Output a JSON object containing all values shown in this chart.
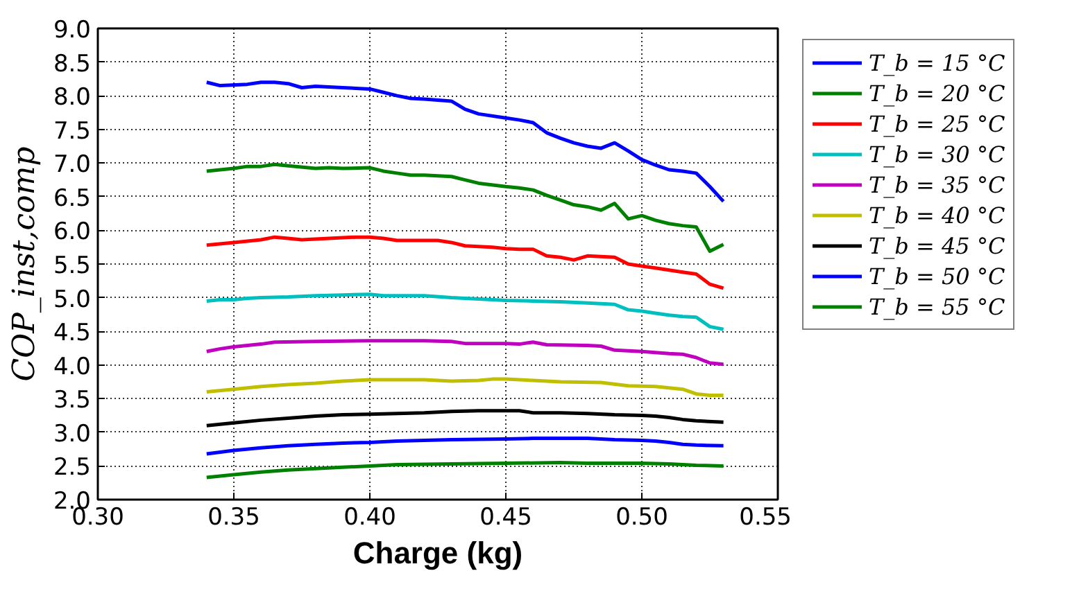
{
  "chart_data": {
    "type": "line",
    "xlabel": "Charge (kg)",
    "ylabel": "COP_inst,comp",
    "xlim": [
      0.3,
      0.55
    ],
    "ylim": [
      2.0,
      9.0
    ],
    "xticks": [
      {
        "value": 0.3,
        "label": "0.30"
      },
      {
        "value": 0.35,
        "label": "0.35"
      },
      {
        "value": 0.4,
        "label": "0.40"
      },
      {
        "value": 0.45,
        "label": "0.45"
      },
      {
        "value": 0.5,
        "label": "0.50"
      },
      {
        "value": 0.55,
        "label": "0.55"
      }
    ],
    "yticks": [
      {
        "value": 2.0,
        "label": "2.0"
      },
      {
        "value": 2.5,
        "label": "2.5"
      },
      {
        "value": 3.0,
        "label": "3.0"
      },
      {
        "value": 3.5,
        "label": "3.5"
      },
      {
        "value": 4.0,
        "label": "4.0"
      },
      {
        "value": 4.5,
        "label": "4.5"
      },
      {
        "value": 5.0,
        "label": "5.0"
      },
      {
        "value": 5.5,
        "label": "5.5"
      },
      {
        "value": 6.0,
        "label": "6.0"
      },
      {
        "value": 6.5,
        "label": "6.5"
      },
      {
        "value": 7.0,
        "label": "7.0"
      },
      {
        "value": 7.5,
        "label": "7.5"
      },
      {
        "value": 8.0,
        "label": "8.0"
      },
      {
        "value": 8.5,
        "label": "8.5"
      },
      {
        "value": 9.0,
        "label": "9.0"
      }
    ],
    "grid": true,
    "legend": "right",
    "line_style": "solid",
    "marker": "none",
    "series": [
      {
        "name": "T_b = 15 °C",
        "color": "#0000ff",
        "x": [
          0.34,
          0.345,
          0.355,
          0.36,
          0.365,
          0.37,
          0.375,
          0.38,
          0.39,
          0.4,
          0.405,
          0.41,
          0.415,
          0.42,
          0.43,
          0.435,
          0.44,
          0.45,
          0.455,
          0.46,
          0.465,
          0.47,
          0.475,
          0.48,
          0.485,
          0.49,
          0.495,
          0.5,
          0.505,
          0.51,
          0.515,
          0.52,
          0.525,
          0.53
        ],
        "values": [
          8.2,
          8.15,
          8.17,
          8.2,
          8.2,
          8.18,
          8.12,
          8.14,
          8.12,
          8.1,
          8.05,
          8.0,
          7.96,
          7.95,
          7.92,
          7.8,
          7.73,
          7.67,
          7.64,
          7.6,
          7.45,
          7.37,
          7.3,
          7.25,
          7.22,
          7.3,
          7.18,
          7.05,
          6.97,
          6.9,
          6.88,
          6.85,
          6.65,
          6.43
        ]
      },
      {
        "name": "T_b = 20 °C",
        "color": "#008000",
        "x": [
          0.34,
          0.35,
          0.355,
          0.36,
          0.365,
          0.37,
          0.38,
          0.385,
          0.39,
          0.4,
          0.405,
          0.41,
          0.415,
          0.42,
          0.43,
          0.435,
          0.44,
          0.45,
          0.455,
          0.46,
          0.465,
          0.47,
          0.475,
          0.48,
          0.485,
          0.49,
          0.495,
          0.5,
          0.505,
          0.51,
          0.515,
          0.52,
          0.525,
          0.53
        ],
        "values": [
          6.88,
          6.92,
          6.95,
          6.95,
          6.98,
          6.96,
          6.92,
          6.93,
          6.92,
          6.93,
          6.88,
          6.85,
          6.82,
          6.82,
          6.8,
          6.75,
          6.7,
          6.65,
          6.63,
          6.6,
          6.52,
          6.45,
          6.38,
          6.35,
          6.3,
          6.4,
          6.17,
          6.22,
          6.15,
          6.1,
          6.07,
          6.05,
          5.69,
          5.79
        ]
      },
      {
        "name": "T_b = 25 °C",
        "color": "#ff0000",
        "x": [
          0.34,
          0.35,
          0.36,
          0.365,
          0.37,
          0.375,
          0.38,
          0.39,
          0.395,
          0.4,
          0.405,
          0.41,
          0.42,
          0.425,
          0.43,
          0.435,
          0.44,
          0.445,
          0.45,
          0.455,
          0.46,
          0.465,
          0.47,
          0.475,
          0.48,
          0.485,
          0.49,
          0.495,
          0.5,
          0.505,
          0.51,
          0.515,
          0.52,
          0.525,
          0.53
        ],
        "values": [
          5.78,
          5.82,
          5.86,
          5.9,
          5.88,
          5.86,
          5.87,
          5.89,
          5.9,
          5.9,
          5.88,
          5.85,
          5.85,
          5.85,
          5.82,
          5.77,
          5.76,
          5.75,
          5.73,
          5.72,
          5.72,
          5.62,
          5.6,
          5.56,
          5.62,
          5.61,
          5.6,
          5.5,
          5.47,
          5.44,
          5.41,
          5.38,
          5.35,
          5.2,
          5.14
        ]
      },
      {
        "name": "T_b = 30 °C",
        "color": "#00bfbf",
        "x": [
          0.34,
          0.345,
          0.35,
          0.355,
          0.36,
          0.37,
          0.38,
          0.39,
          0.4,
          0.405,
          0.41,
          0.42,
          0.43,
          0.44,
          0.45,
          0.46,
          0.47,
          0.48,
          0.49,
          0.495,
          0.5,
          0.505,
          0.51,
          0.515,
          0.52,
          0.525,
          0.53
        ],
        "values": [
          4.95,
          4.97,
          4.97,
          4.99,
          5.0,
          5.01,
          5.03,
          5.04,
          5.05,
          5.03,
          5.03,
          5.03,
          5.0,
          4.98,
          4.96,
          4.95,
          4.94,
          4.92,
          4.9,
          4.82,
          4.8,
          4.77,
          4.74,
          4.72,
          4.71,
          4.57,
          4.53
        ]
      },
      {
        "name": "T_b = 35 °C",
        "color": "#bf00bf",
        "x": [
          0.34,
          0.345,
          0.35,
          0.36,
          0.365,
          0.38,
          0.4,
          0.42,
          0.43,
          0.435,
          0.45,
          0.455,
          0.46,
          0.465,
          0.48,
          0.485,
          0.49,
          0.5,
          0.51,
          0.515,
          0.52,
          0.525,
          0.53
        ],
        "values": [
          4.2,
          4.24,
          4.27,
          4.31,
          4.34,
          4.35,
          4.36,
          4.36,
          4.35,
          4.32,
          4.32,
          4.31,
          4.34,
          4.3,
          4.29,
          4.28,
          4.22,
          4.2,
          4.17,
          4.16,
          4.11,
          4.03,
          4.01
        ]
      },
      {
        "name": "T_b = 40 °C",
        "color": "#bfbf00",
        "x": [
          0.34,
          0.35,
          0.36,
          0.37,
          0.38,
          0.39,
          0.4,
          0.42,
          0.43,
          0.44,
          0.445,
          0.45,
          0.46,
          0.47,
          0.485,
          0.495,
          0.505,
          0.51,
          0.515,
          0.52,
          0.525,
          0.53
        ],
        "values": [
          3.6,
          3.64,
          3.68,
          3.71,
          3.73,
          3.76,
          3.78,
          3.78,
          3.76,
          3.77,
          3.79,
          3.79,
          3.77,
          3.75,
          3.74,
          3.69,
          3.68,
          3.66,
          3.64,
          3.57,
          3.55,
          3.55
        ]
      },
      {
        "name": "T_b = 45 °C",
        "color": "#000000",
        "x": [
          0.34,
          0.35,
          0.36,
          0.37,
          0.38,
          0.39,
          0.4,
          0.41,
          0.42,
          0.43,
          0.44,
          0.455,
          0.46,
          0.47,
          0.48,
          0.49,
          0.5,
          0.505,
          0.51,
          0.515,
          0.52,
          0.53
        ],
        "values": [
          3.1,
          3.14,
          3.18,
          3.21,
          3.24,
          3.26,
          3.27,
          3.28,
          3.29,
          3.31,
          3.32,
          3.32,
          3.29,
          3.29,
          3.28,
          3.26,
          3.25,
          3.24,
          3.22,
          3.19,
          3.17,
          3.15
        ]
      },
      {
        "name": "T_b = 50 °C",
        "color": "#0000ff",
        "x": [
          0.34,
          0.35,
          0.36,
          0.37,
          0.38,
          0.39,
          0.4,
          0.41,
          0.42,
          0.43,
          0.45,
          0.46,
          0.47,
          0.48,
          0.49,
          0.5,
          0.505,
          0.51,
          0.515,
          0.52,
          0.53
        ],
        "values": [
          2.68,
          2.73,
          2.77,
          2.8,
          2.82,
          2.84,
          2.85,
          2.87,
          2.88,
          2.89,
          2.9,
          2.91,
          2.91,
          2.91,
          2.89,
          2.88,
          2.87,
          2.85,
          2.82,
          2.81,
          2.8
        ]
      },
      {
        "name": "T_b = 55 °C",
        "color": "#008000",
        "x": [
          0.34,
          0.35,
          0.36,
          0.37,
          0.38,
          0.39,
          0.4,
          0.41,
          0.43,
          0.45,
          0.47,
          0.48,
          0.5,
          0.51,
          0.52,
          0.53
        ],
        "values": [
          2.33,
          2.37,
          2.41,
          2.44,
          2.46,
          2.48,
          2.5,
          2.52,
          2.53,
          2.54,
          2.55,
          2.54,
          2.54,
          2.53,
          2.51,
          2.5
        ]
      }
    ]
  }
}
